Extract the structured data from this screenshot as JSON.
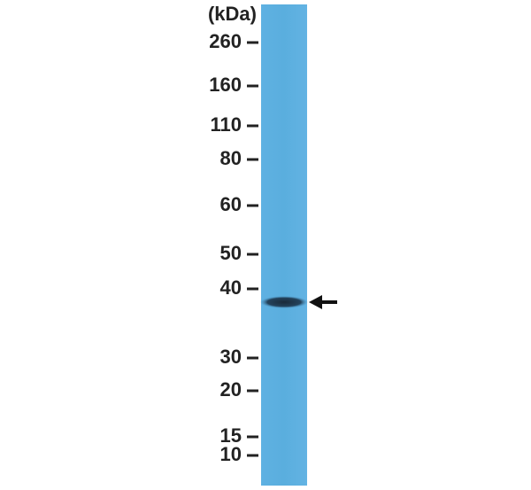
{
  "unit_label": "(kDa)",
  "markers": [
    "260",
    "160",
    "110",
    "80",
    "60",
    "50",
    "40",
    "30",
    "20",
    "15",
    "10"
  ]
}
